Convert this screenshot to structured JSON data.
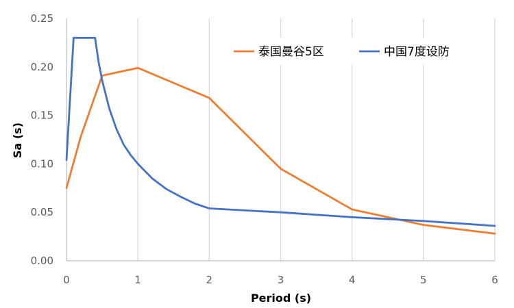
{
  "chart_data": {
    "type": "line",
    "xlabel": "Period (s)",
    "ylabel": "Sa (s)",
    "xlim": [
      0,
      6
    ],
    "ylim": [
      0,
      0.25
    ],
    "x_ticks": [
      "0",
      "1",
      "2",
      "3",
      "4",
      "5",
      "6"
    ],
    "y_ticks": [
      "0.00",
      "0.05",
      "0.10",
      "0.15",
      "0.20",
      "0.25"
    ],
    "grid": "vertical",
    "legend_position": "top-right",
    "series": [
      {
        "name": "泰国曼谷5区",
        "color": "#ED7D31",
        "x": [
          0,
          0.2,
          0.5,
          1.0,
          2.0,
          3.0,
          4.0,
          5.0,
          6.0
        ],
        "y": [
          0.075,
          0.128,
          0.191,
          0.199,
          0.168,
          0.095,
          0.053,
          0.037,
          0.028
        ]
      },
      {
        "name": "中国7度设防",
        "color": "#4472C4",
        "x": [
          0,
          0.1,
          0.4,
          0.45,
          0.5,
          0.6,
          0.7,
          0.8,
          0.9,
          1.0,
          1.2,
          1.4,
          1.6,
          1.8,
          2.0,
          2.5,
          3.0,
          4.0,
          5.0,
          6.0
        ],
        "y": [
          0.104,
          0.23,
          0.23,
          0.205,
          0.186,
          0.157,
          0.136,
          0.12,
          0.109,
          0.1,
          0.085,
          0.074,
          0.066,
          0.059,
          0.054,
          0.052,
          0.05,
          0.045,
          0.041,
          0.036
        ]
      }
    ]
  }
}
